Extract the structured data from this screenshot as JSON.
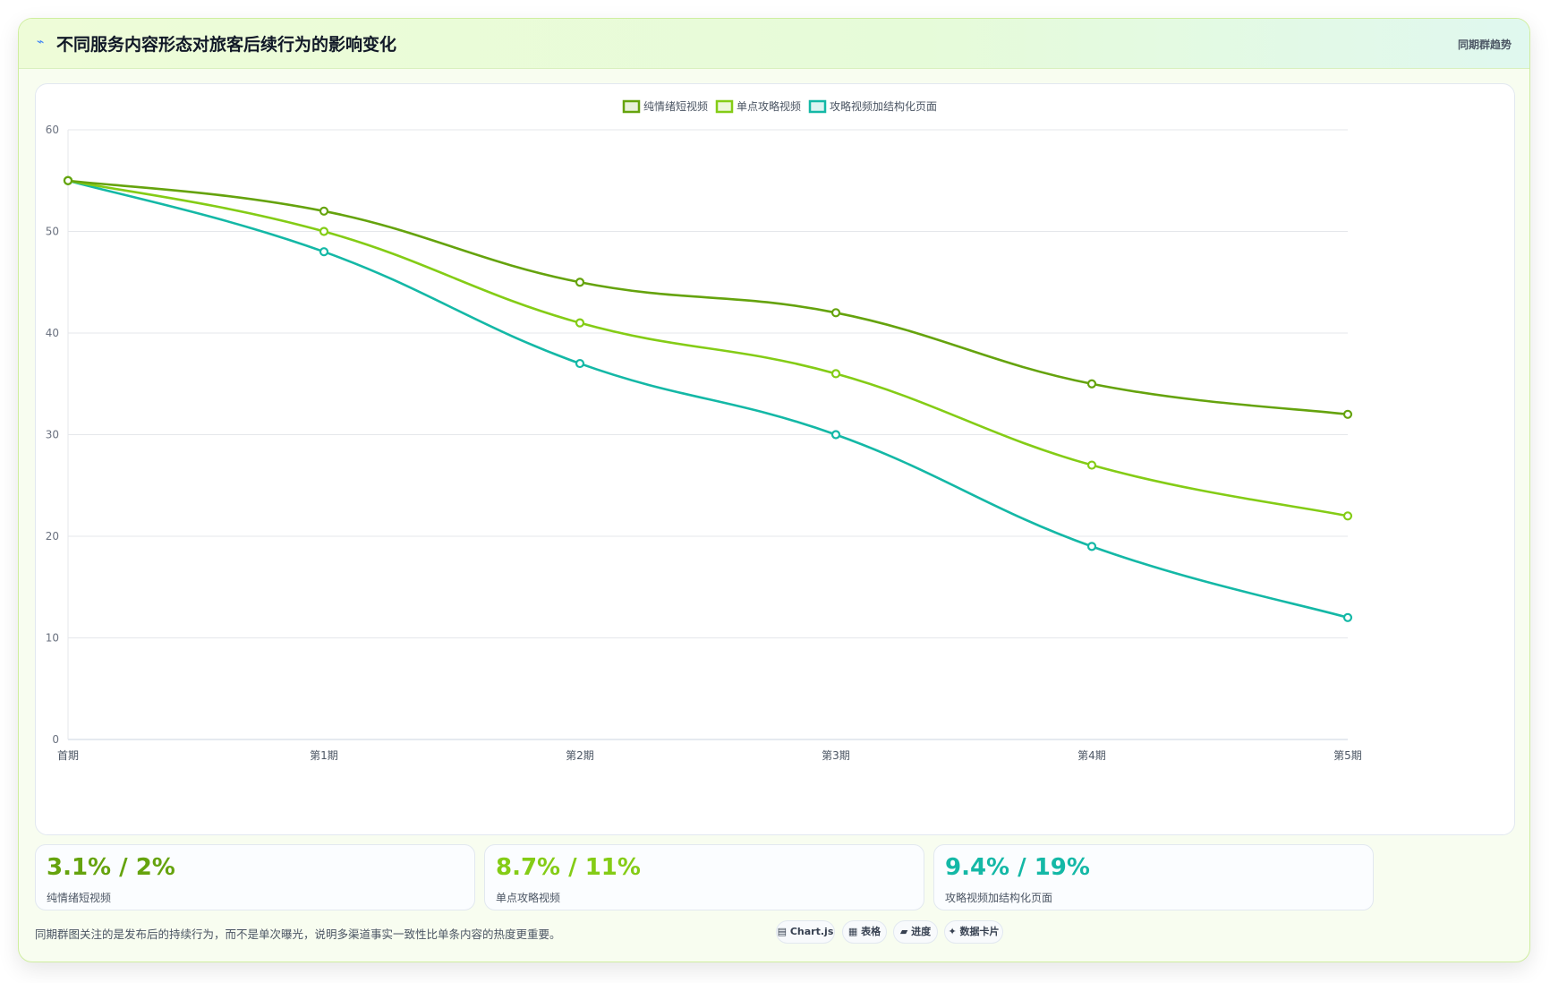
{
  "header": {
    "icon": "lightning-icon",
    "title": "不同服务内容形态对旅客后续行为的影响变化",
    "tag": "同期群趋势"
  },
  "chart_data": {
    "type": "line",
    "title": "",
    "xlabel": "",
    "ylabel": "",
    "categories": [
      "首期",
      "第1期",
      "第2期",
      "第3期",
      "第4期",
      "第5期"
    ],
    "ylim": [
      0,
      60
    ],
    "yticks": [
      0,
      10,
      20,
      30,
      40,
      50,
      60
    ],
    "grid": true,
    "legend": "top-center",
    "series": [
      {
        "name": "纯情绪短视频",
        "color": "#65a30d",
        "values": [
          55,
          52,
          45,
          42,
          35,
          32
        ]
      },
      {
        "name": "单点攻略视频",
        "color": "#84cc16",
        "values": [
          55,
          50,
          41,
          36,
          27,
          22
        ]
      },
      {
        "name": "攻略视频加结构化页面",
        "color": "#14b8a6",
        "values": [
          55,
          48,
          37,
          30,
          19,
          12
        ]
      }
    ]
  },
  "stats": [
    {
      "value": "3.1% / 2%",
      "label": "纯情绪短视频",
      "color": "#65a30d"
    },
    {
      "value": "8.7% / 11%",
      "label": "单点攻略视频",
      "color": "#84cc16"
    },
    {
      "value": "9.4% / 19%",
      "label": "攻略视频加结构化页面",
      "color": "#14b8a6"
    }
  ],
  "footnote": "同期群图关注的是发布后的持续行为，而不是单次曝光，说明多渠道事实一致性比单条内容的热度更重要。",
  "chips": [
    {
      "icon": "chart-icon",
      "glyph": "▤",
      "label": "Chart.js"
    },
    {
      "icon": "table-icon",
      "glyph": "▦",
      "label": "表格"
    },
    {
      "icon": "progress-icon",
      "glyph": "▰",
      "label": "进度"
    },
    {
      "icon": "sparkle-icon",
      "glyph": "✦",
      "label": "数据卡片"
    }
  ]
}
